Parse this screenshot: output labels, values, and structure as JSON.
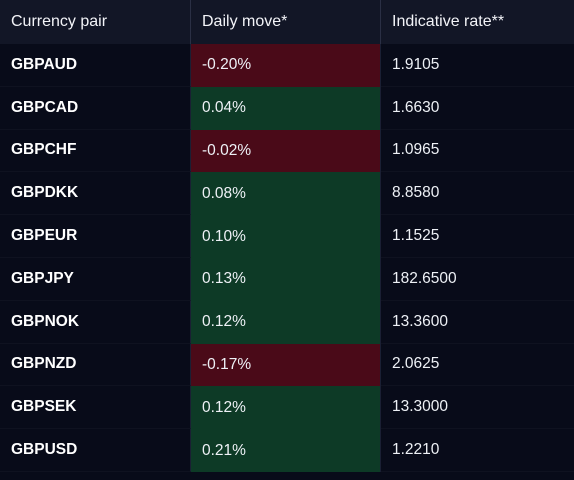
{
  "table": {
    "headers": {
      "pair": "Currency pair",
      "move": "Daily move*",
      "rate": "Indicative rate**"
    },
    "rows": [
      {
        "pair": "GBPAUD",
        "move": "-0.20%",
        "direction": "down",
        "rate": "1.9105"
      },
      {
        "pair": "GBPCAD",
        "move": "0.04%",
        "direction": "up",
        "rate": "1.6630"
      },
      {
        "pair": "GBPCHF",
        "move": "-0.02%",
        "direction": "down",
        "rate": "1.0965"
      },
      {
        "pair": "GBPDKK",
        "move": "0.08%",
        "direction": "up",
        "rate": "8.8580"
      },
      {
        "pair": "GBPEUR",
        "move": "0.10%",
        "direction": "up",
        "rate": "1.1525"
      },
      {
        "pair": "GBPJPY",
        "move": "0.13%",
        "direction": "up",
        "rate": "182.6500"
      },
      {
        "pair": "GBPNOK",
        "move": "0.12%",
        "direction": "up",
        "rate": "13.3600"
      },
      {
        "pair": "GBPNZD",
        "move": "-0.17%",
        "direction": "down",
        "rate": "2.0625"
      },
      {
        "pair": "GBPSEK",
        "move": "0.12%",
        "direction": "up",
        "rate": "13.3000"
      },
      {
        "pair": "GBPUSD",
        "move": "0.21%",
        "direction": "up",
        "rate": "1.2210"
      }
    ]
  },
  "colors": {
    "background": "#080b19",
    "header_background": "#121626",
    "positive_move": "#0d3a26",
    "negative_move": "#4a0a18"
  }
}
